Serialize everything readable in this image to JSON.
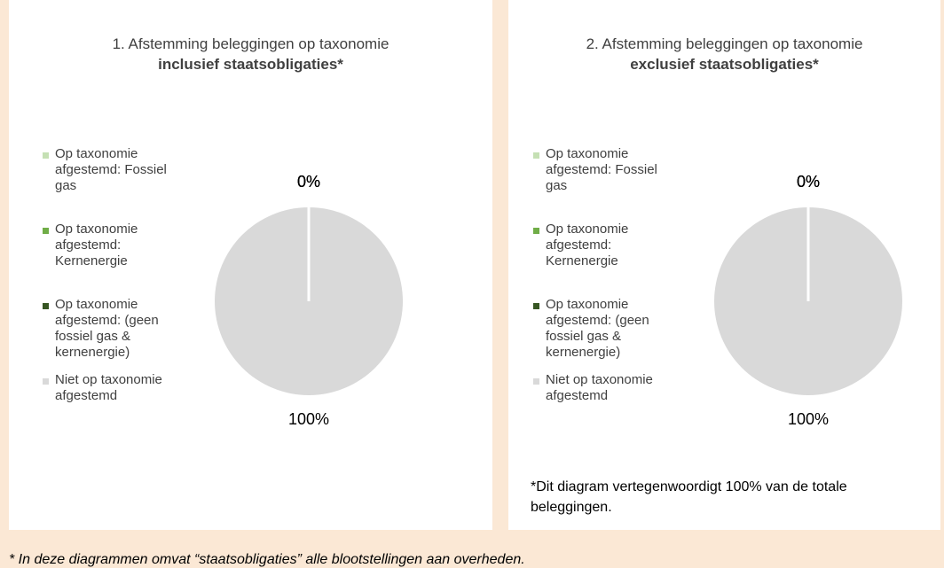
{
  "chart_data": [
    {
      "type": "pie",
      "title": "1. Afstemming beleggingen op taxonomie",
      "subtitle": "inclusief staatsobligaties*",
      "categories": [
        "Op taxonomie afgestemd: Fossiel gas",
        "Op taxonomie afgestemd: Kernenergie",
        "Op taxonomie afgestemd: (geen fossiel gas & kernenergie)",
        "Niet op taxonomie afgestemd"
      ],
      "values": [
        0,
        0,
        0,
        100
      ],
      "value_labels": [
        "0%",
        "0%",
        "0%",
        "100%"
      ],
      "colors": [
        "#c5e0b4",
        "#70ad47",
        "#375623",
        "#d9d9d9"
      ]
    },
    {
      "type": "pie",
      "title": "2. Afstemming beleggingen op taxonomie",
      "subtitle": "exclusief staatsobligaties*",
      "categories": [
        "Op taxonomie afgestemd: Fossiel gas",
        "Op taxonomie afgestemd: Kernenergie",
        "Op taxonomie afgestemd: (geen fossiel gas & kernenergie)",
        "Niet op taxonomie afgestemd"
      ],
      "values": [
        0,
        0,
        0,
        100
      ],
      "value_labels": [
        "0%",
        "0%",
        "0%",
        "100%"
      ],
      "colors": [
        "#c5e0b4",
        "#70ad47",
        "#375623",
        "#d9d9d9"
      ],
      "note": "*Dit diagram vertegenwoordigt 100% van de totale beleggingen."
    }
  ],
  "footnote": "* In deze diagrammen omvat “staatsobligaties” alle blootstellingen aan overheden."
}
